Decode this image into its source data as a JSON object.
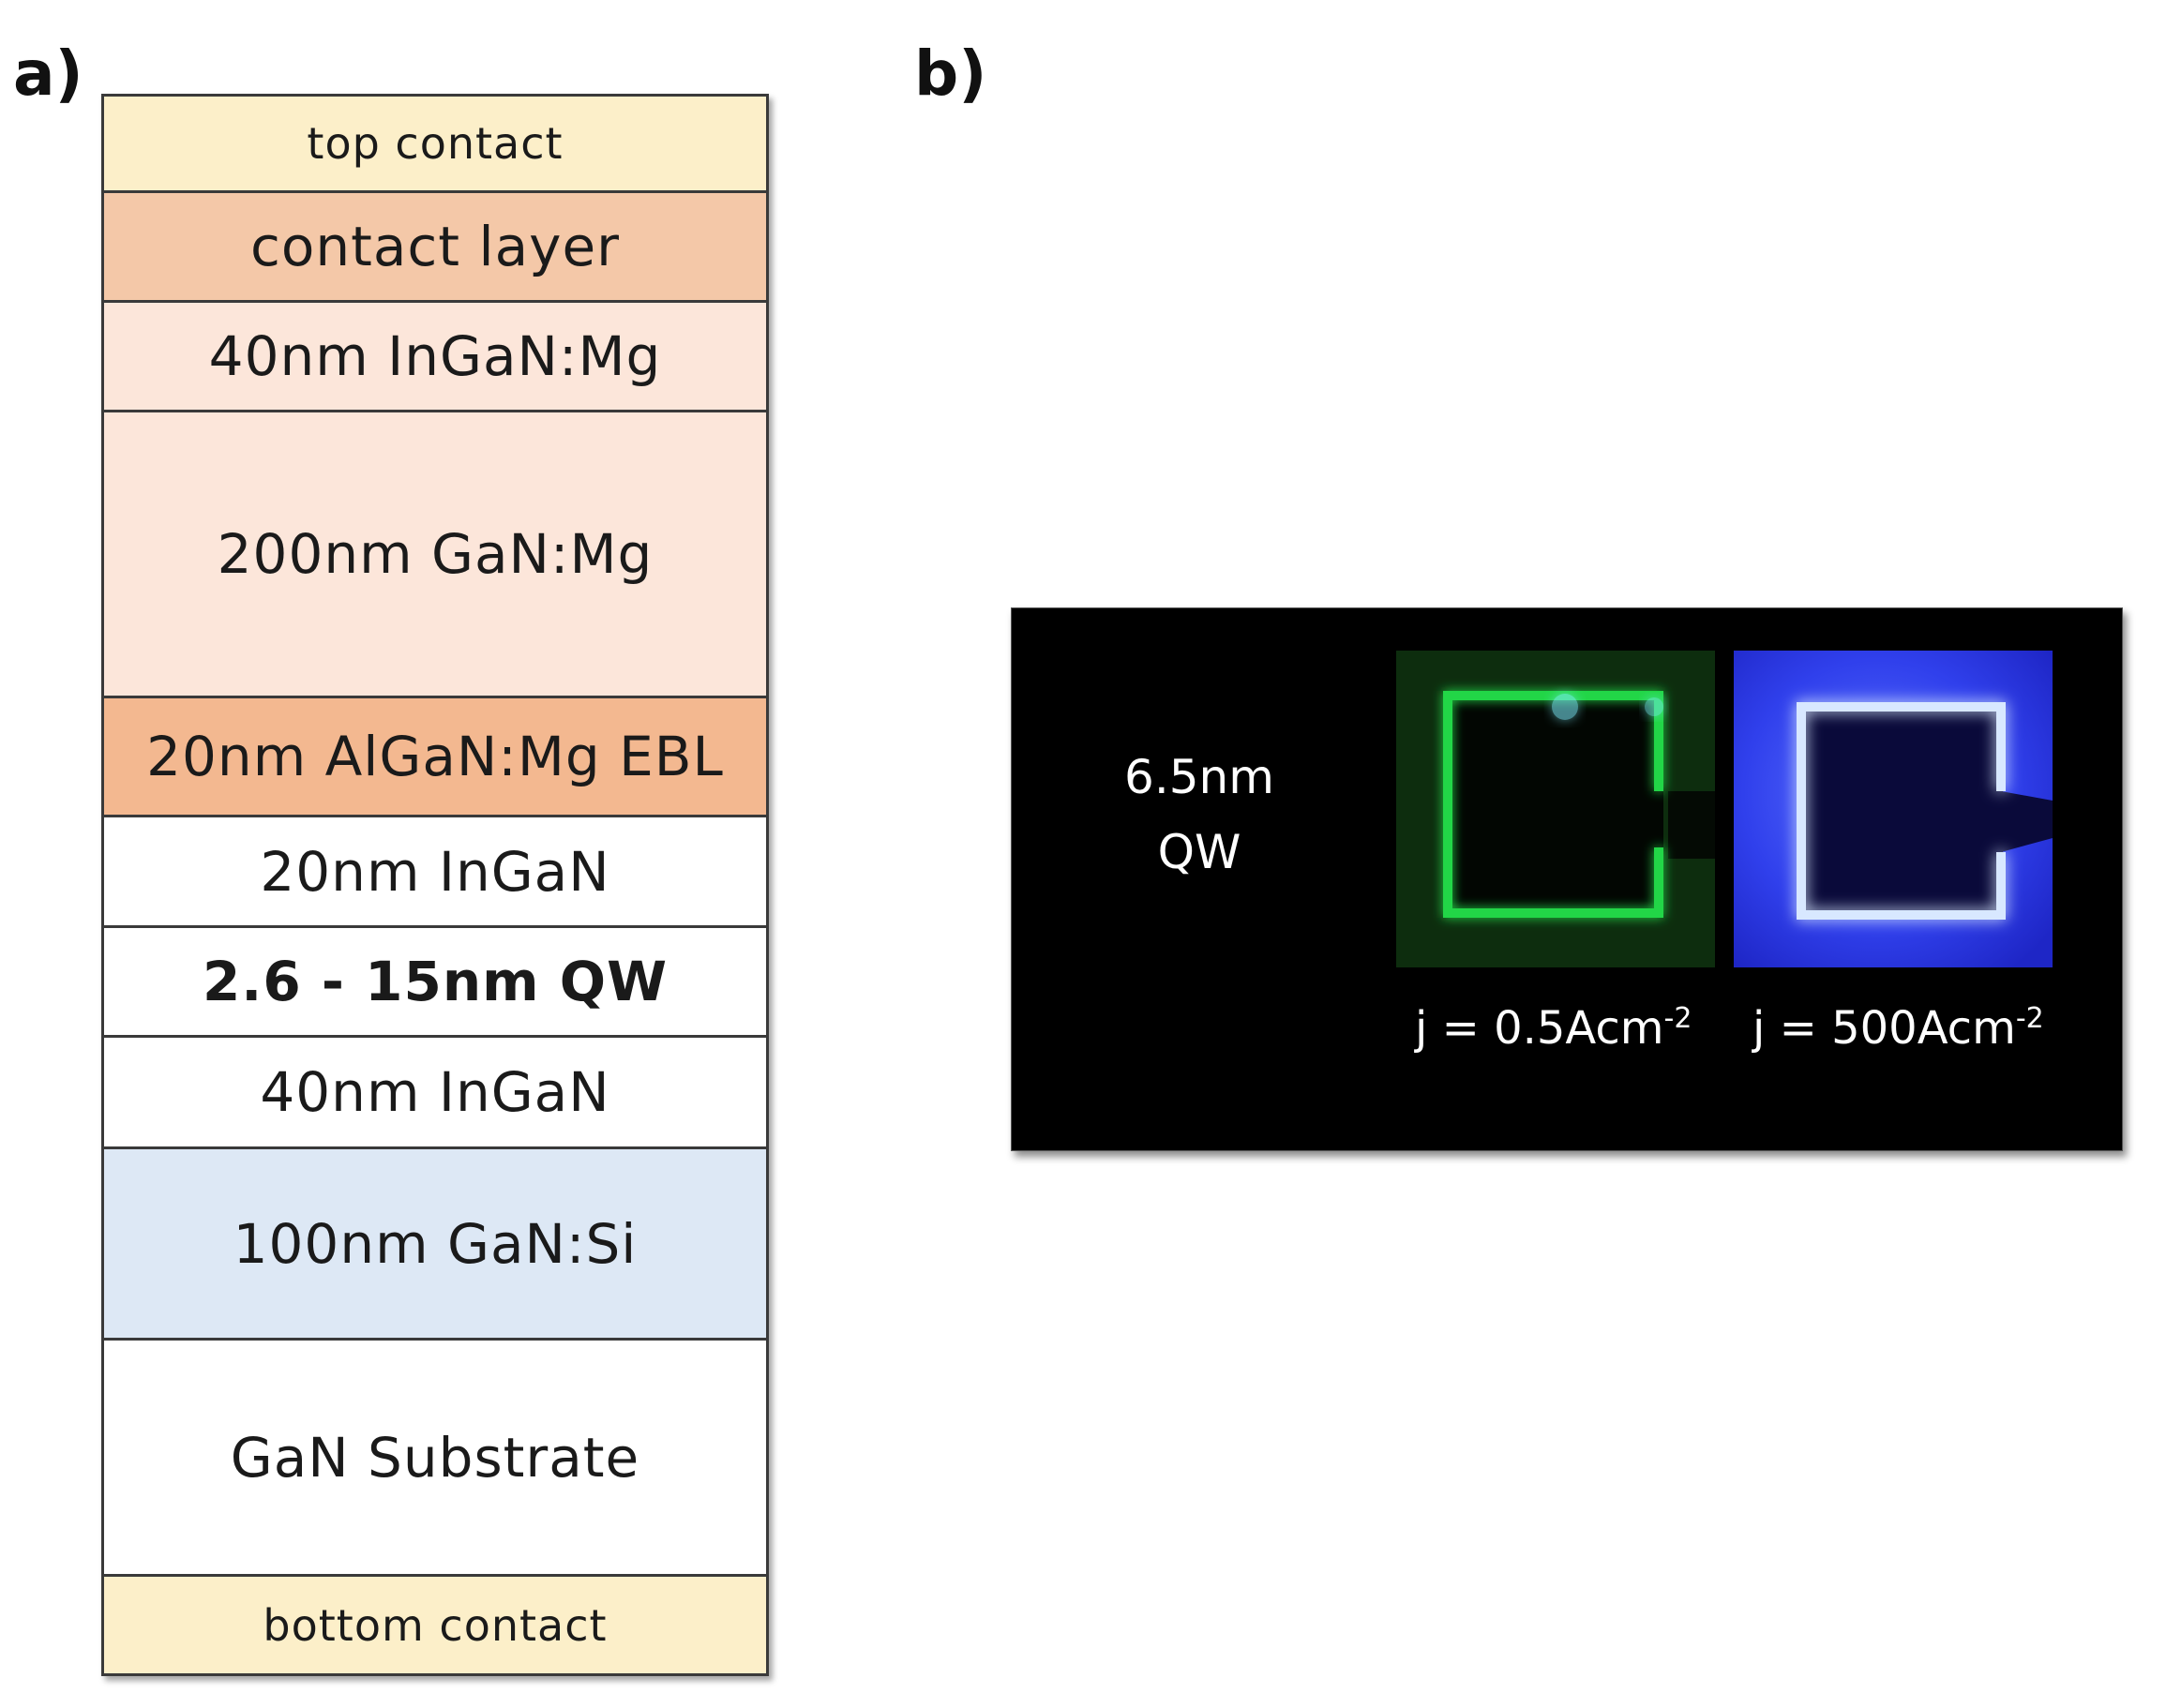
{
  "panels": {
    "a": "a)",
    "b": "b)"
  },
  "layer_stack": [
    {
      "label": "top contact",
      "color": "#fcefc9",
      "bold": false
    },
    {
      "label": "contact layer",
      "color": "#f4c8a8",
      "bold": false
    },
    {
      "label": "40nm InGaN:Mg",
      "color": "#fce6da",
      "bold": false
    },
    {
      "label": "200nm GaN:Mg",
      "color": "#fce6da",
      "bold": false
    },
    {
      "label": "20nm AlGaN:Mg EBL",
      "color": "#f3b890",
      "bold": false
    },
    {
      "label": "20nm InGaN",
      "color": "#ffffff",
      "bold": false
    },
    {
      "label": "2.6 - 15nm QW",
      "color": "#ffffff",
      "bold": true
    },
    {
      "label": "40nm InGaN",
      "color": "#ffffff",
      "bold": false
    },
    {
      "label": "100nm GaN:Si",
      "color": "#dde8f5",
      "bold": false
    },
    {
      "label": "GaN Substrate",
      "color": "#ffffff",
      "bold": false
    },
    {
      "label": "bottom contact",
      "color": "#fcefc9",
      "bold": false
    }
  ],
  "photo": {
    "qw_label_line1": "6.5nm",
    "qw_label_line2": "QW",
    "green_current": {
      "prefix": "j = 0.5Acm",
      "exponent": "-2"
    },
    "blue_current": {
      "prefix": "j = 500Acm",
      "exponent": "-2"
    },
    "colors": {
      "green_emission": "#22d44a",
      "blue_emission": "#c8e0ff"
    }
  }
}
